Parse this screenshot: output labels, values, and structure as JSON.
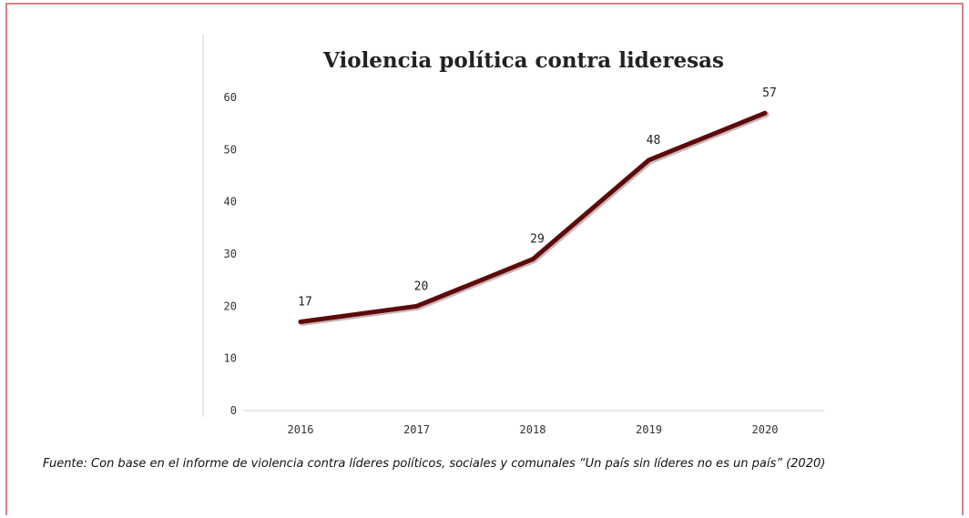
{
  "chart_data": {
    "type": "line",
    "title": "Violencia política contra lideresas",
    "categories": [
      "2016",
      "2017",
      "2018",
      "2019",
      "2020"
    ],
    "series": [
      {
        "values": [
          17,
          20,
          29,
          48,
          57
        ],
        "color": "#5e0a0a"
      }
    ],
    "data_labels": [
      "17",
      "20",
      "29",
      "48",
      "57"
    ],
    "y_ticks": [
      "0",
      "10",
      "20",
      "30",
      "40",
      "50",
      "60"
    ],
    "xlabel": "",
    "ylabel": "",
    "ylim": [
      0,
      60
    ],
    "grid": false,
    "legend": "none"
  },
  "source": "Fuente: Con base en el informe de violencia contra líderes políticos, sociales y comunales “Un país sin líderes no es un país” (2020)"
}
